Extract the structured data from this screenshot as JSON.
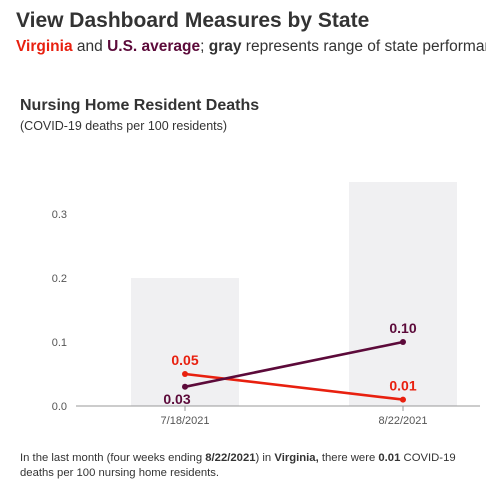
{
  "header": {
    "title": "View Dashboard Measures by State",
    "legend_virginia": "Virginia",
    "legend_and": " and ",
    "legend_us": "U.S. average",
    "legend_sep": "; ",
    "legend_gray": "gray",
    "legend_rest": " represents range of state performance"
  },
  "colors": {
    "virginia": "#e8200f",
    "us_average": "#5c0a3a",
    "range": "#f0f0f2",
    "axis": "#999999",
    "tick_text": "#555555"
  },
  "chart_data": {
    "type": "line",
    "title": "Nursing Home Resident Deaths",
    "subtitle": "(COVID-19 deaths per 100 residents)",
    "categories": [
      "7/18/2021",
      "8/22/2021"
    ],
    "ylim": [
      0,
      0.35
    ],
    "yticks": [
      0.0,
      0.1,
      0.2,
      0.3
    ],
    "ytick_labels": [
      "0.0",
      "0.1",
      "0.2",
      "0.3"
    ],
    "range_bars": [
      {
        "category": "7/18/2021",
        "low": 0,
        "high": 0.2
      },
      {
        "category": "8/22/2021",
        "high": 0.35,
        "low": 0
      }
    ],
    "series": [
      {
        "name": "Virginia",
        "values": [
          0.05,
          0.01
        ],
        "labels": [
          "0.05",
          "0.01"
        ]
      },
      {
        "name": "U.S. average",
        "values": [
          0.03,
          0.1
        ],
        "labels": [
          "0.03",
          "0.10"
        ]
      }
    ],
    "grid": false
  },
  "footnote": {
    "p1": "In the last month (four weeks ending ",
    "date": "8/22/2021",
    "p2": ") in ",
    "state": "Virginia,",
    "p3": " there were ",
    "value": "0.01",
    "p4": " COVID-19 deaths per 100 nursing home residents."
  }
}
